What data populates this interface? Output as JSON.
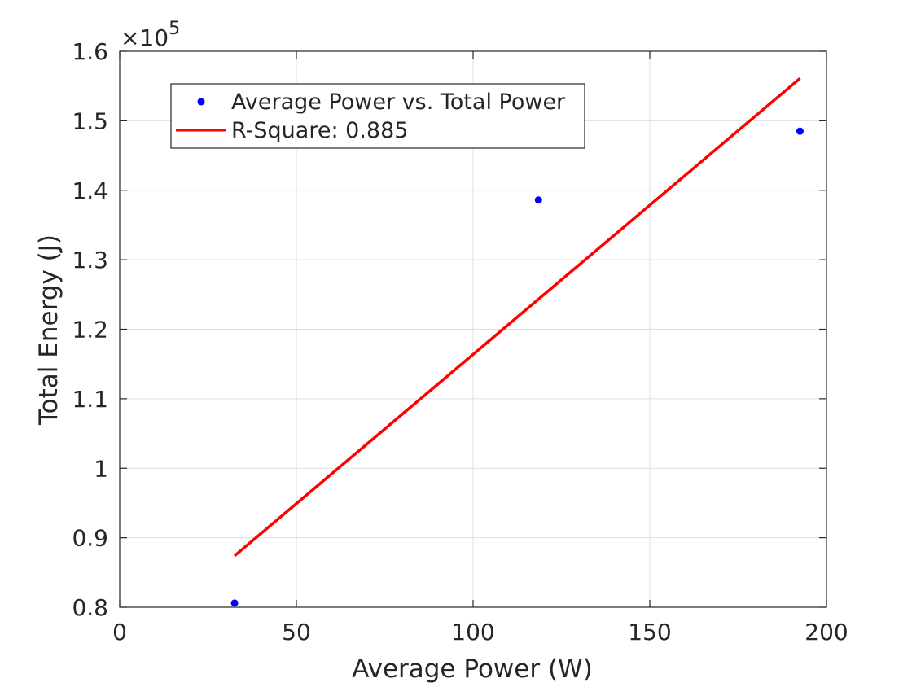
{
  "chart_data": {
    "type": "scatter",
    "title": "",
    "xlabel": "Average Power (W)",
    "ylabel": "Total Energy (J)",
    "xlim": [
      0,
      200
    ],
    "ylim": [
      0.8,
      1.6
    ],
    "y_exponent_label": "×10",
    "y_exponent_power": "5",
    "x_ticks": [
      0,
      50,
      100,
      150,
      200
    ],
    "y_ticks": [
      0.8,
      0.9,
      1,
      1.1,
      1.2,
      1.3,
      1.4,
      1.5,
      1.6
    ],
    "x_tick_labels": [
      "0",
      "50",
      "100",
      "150",
      "200"
    ],
    "y_tick_labels": [
      "0.8",
      "0.9",
      "1",
      "1.1",
      "1.2",
      "1.3",
      "1.4",
      "1.5",
      "1.6"
    ],
    "grid": true,
    "legend_position": "top-left",
    "series": [
      {
        "name": "Average Power vs. Total Power",
        "kind": "scatter",
        "color": "#0000ff",
        "x": [
          32.5,
          118.5,
          192.5
        ],
        "y": [
          0.806,
          1.386,
          1.485
        ]
      },
      {
        "name": "R-Square: 0.885",
        "kind": "line",
        "color": "#ff0000",
        "x": [
          32.5,
          192.5
        ],
        "y": [
          0.874,
          1.561
        ]
      }
    ]
  }
}
